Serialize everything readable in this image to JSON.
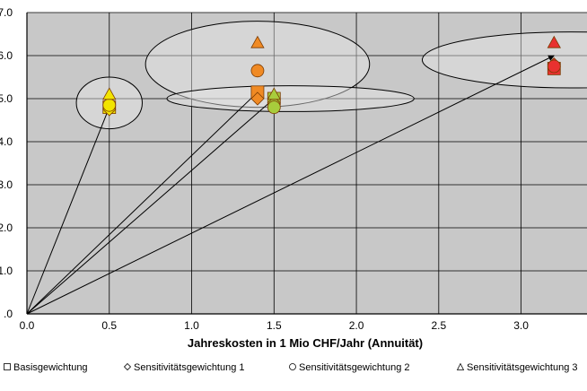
{
  "chart_data": {
    "type": "scatter",
    "title": "",
    "xlabel": "Jahreskosten in 1 Mio CHF/Jahr (Annuität)",
    "ylabel": "",
    "xlim": [
      0.0,
      3.4
    ],
    "ylim": [
      0.0,
      7.0
    ],
    "x_ticks": [
      0.0,
      0.5,
      1.0,
      1.5,
      2.0,
      2.5,
      3.0
    ],
    "x_tick_labels": [
      "0.0",
      "0.5",
      "1.0",
      "1.5",
      "2.0",
      "2.5",
      "3.0"
    ],
    "y_ticks": [
      0,
      1,
      2,
      3,
      4,
      5,
      6,
      7
    ],
    "y_tick_labels": [
      ".0",
      "1.0",
      "2.0",
      "3.0",
      "4.0",
      "5.0",
      "6.0",
      "7.0"
    ],
    "grid": true,
    "legend_position": "bottom",
    "series": [
      {
        "name": "Basisgewichtung",
        "marker": "square",
        "points": [
          {
            "x": 0.5,
            "y": 4.8,
            "color": "#f2e400"
          },
          {
            "x": 1.4,
            "y": 5.15,
            "color": "#f08a24"
          },
          {
            "x": 1.5,
            "y": 5.0,
            "color": "#a8cc3c"
          },
          {
            "x": 3.2,
            "y": 5.7,
            "color": "#e8312f"
          }
        ]
      },
      {
        "name": "Sensitivitätsgewichtung 1",
        "marker": "diamond",
        "points": [
          {
            "x": 0.5,
            "y": 4.75,
            "color": "#f2e400"
          },
          {
            "x": 1.4,
            "y": 5.0,
            "color": "#f08a24"
          },
          {
            "x": 1.5,
            "y": 4.9,
            "color": "#a8cc3c"
          },
          {
            "x": 3.2,
            "y": 5.8,
            "color": "#e8312f"
          }
        ]
      },
      {
        "name": "Sensitivitätsgewichtung 2",
        "marker": "circle",
        "points": [
          {
            "x": 0.5,
            "y": 4.85,
            "color": "#f2e400"
          },
          {
            "x": 1.4,
            "y": 5.65,
            "color": "#f08a24"
          },
          {
            "x": 1.5,
            "y": 4.8,
            "color": "#a8cc3c"
          },
          {
            "x": 3.2,
            "y": 5.75,
            "color": "#e8312f"
          }
        ]
      },
      {
        "name": "Sensitivitätsgewichtung 3",
        "marker": "triangle",
        "points": [
          {
            "x": 0.5,
            "y": 5.1,
            "color": "#f2e400"
          },
          {
            "x": 1.4,
            "y": 6.3,
            "color": "#f08a24"
          },
          {
            "x": 1.5,
            "y": 5.1,
            "color": "#a8cc3c"
          },
          {
            "x": 3.2,
            "y": 6.3,
            "color": "#e8312f"
          }
        ]
      }
    ],
    "arrows": [
      {
        "from": [
          0.0,
          0.0
        ],
        "to": [
          0.5,
          4.8
        ]
      },
      {
        "from": [
          0.0,
          0.0
        ],
        "to": [
          1.4,
          5.15
        ]
      },
      {
        "from": [
          0.0,
          0.0
        ],
        "to": [
          1.5,
          5.0
        ]
      },
      {
        "from": [
          0.0,
          0.0
        ],
        "to": [
          3.2,
          6.0
        ]
      }
    ],
    "ellipses": [
      {
        "cx": 0.5,
        "cy": 4.9,
        "rx": 0.2,
        "ry": 0.6
      },
      {
        "cx": 1.4,
        "cy": 5.8,
        "rx": 0.68,
        "ry": 1.0
      },
      {
        "cx": 1.6,
        "cy": 5.0,
        "rx": 0.75,
        "ry": 0.3
      },
      {
        "cx": 3.3,
        "cy": 5.9,
        "rx": 0.9,
        "ry": 0.65
      }
    ]
  },
  "legend": {
    "items": [
      {
        "label": "Basisgewichtung",
        "marker": "square"
      },
      {
        "label": "Sensitivitätsgewichtung 1",
        "marker": "diamond"
      },
      {
        "label": "Sensitivitätsgewichtung 2",
        "marker": "circle"
      },
      {
        "label": "Sensitivitätsgewichtung 3",
        "marker": "triangle"
      }
    ]
  }
}
